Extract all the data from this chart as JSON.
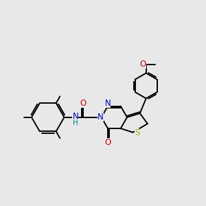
{
  "bg_color": "#e8e8e8",
  "bond_color": "#000000",
  "N_color": "#0000cc",
  "O_color": "#cc0000",
  "S_color": "#aaaa00",
  "H_color": "#008888",
  "line_width": 1.4,
  "font_size": 8,
  "fig_bg": "#e8e8e8",
  "xlim": [
    0,
    10
  ],
  "ylim": [
    1.5,
    10.5
  ]
}
